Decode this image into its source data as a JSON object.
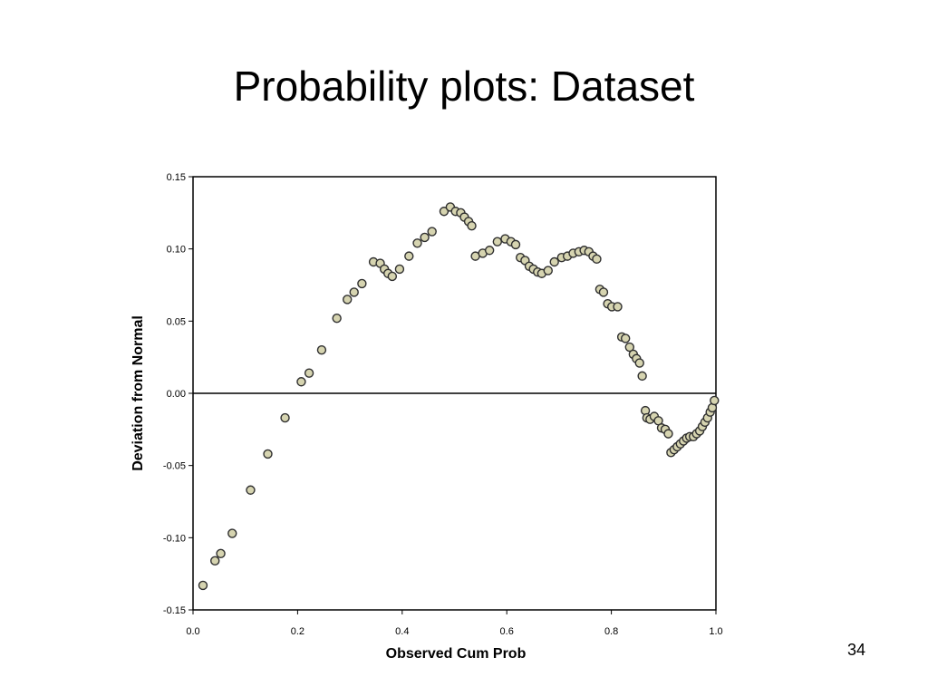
{
  "slide": {
    "title": "Probability plots: Dataset",
    "page_number": "34"
  },
  "colors": {
    "point_fill": "#d6d4b0",
    "point_stroke": "#2f2f2f",
    "axis": "#000000",
    "reference_line": "#000000"
  },
  "chart_data": {
    "type": "scatter",
    "title": "",
    "xlabel": "Observed Cum Prob",
    "ylabel": "Deviation from Normal",
    "xlim": [
      0.0,
      1.0
    ],
    "ylim": [
      -0.15,
      0.15
    ],
    "grid": false,
    "reference_line_y": 0.0,
    "x_ticks": [
      0.0,
      0.2,
      0.4,
      0.6,
      0.8,
      1.0
    ],
    "x_tick_labels": [
      "0.0",
      "0.2",
      "0.4",
      "0.6",
      "0.8",
      "1.0"
    ],
    "y_ticks": [
      0.15,
      0.1,
      0.05,
      0.0,
      -0.05,
      -0.1,
      -0.15
    ],
    "y_tick_labels": [
      "0.15",
      "0.10",
      "0.05",
      "0.00",
      "-0.05",
      "-0.10",
      "-0.15"
    ],
    "points": [
      [
        0.019,
        -0.133
      ],
      [
        0.042,
        -0.116
      ],
      [
        0.053,
        -0.111
      ],
      [
        0.075,
        -0.097
      ],
      [
        0.11,
        -0.067
      ],
      [
        0.143,
        -0.042
      ],
      [
        0.176,
        -0.017
      ],
      [
        0.207,
        0.008
      ],
      [
        0.222,
        0.014
      ],
      [
        0.246,
        0.03
      ],
      [
        0.275,
        0.052
      ],
      [
        0.295,
        0.065
      ],
      [
        0.308,
        0.07
      ],
      [
        0.323,
        0.076
      ],
      [
        0.345,
        0.091
      ],
      [
        0.358,
        0.09
      ],
      [
        0.366,
        0.086
      ],
      [
        0.373,
        0.083
      ],
      [
        0.381,
        0.081
      ],
      [
        0.395,
        0.086
      ],
      [
        0.413,
        0.095
      ],
      [
        0.429,
        0.104
      ],
      [
        0.443,
        0.108
      ],
      [
        0.457,
        0.112
      ],
      [
        0.48,
        0.126
      ],
      [
        0.492,
        0.129
      ],
      [
        0.502,
        0.126
      ],
      [
        0.512,
        0.125
      ],
      [
        0.519,
        0.122
      ],
      [
        0.527,
        0.119
      ],
      [
        0.533,
        0.116
      ],
      [
        0.54,
        0.095
      ],
      [
        0.554,
        0.097
      ],
      [
        0.567,
        0.099
      ],
      [
        0.582,
        0.105
      ],
      [
        0.597,
        0.107
      ],
      [
        0.608,
        0.105
      ],
      [
        0.617,
        0.103
      ],
      [
        0.626,
        0.094
      ],
      [
        0.635,
        0.092
      ],
      [
        0.643,
        0.088
      ],
      [
        0.651,
        0.086
      ],
      [
        0.659,
        0.084
      ],
      [
        0.667,
        0.083
      ],
      [
        0.679,
        0.085
      ],
      [
        0.691,
        0.091
      ],
      [
        0.705,
        0.094
      ],
      [
        0.716,
        0.095
      ],
      [
        0.727,
        0.097
      ],
      [
        0.738,
        0.098
      ],
      [
        0.748,
        0.099
      ],
      [
        0.757,
        0.098
      ],
      [
        0.765,
        0.095
      ],
      [
        0.772,
        0.093
      ],
      [
        0.778,
        0.072
      ],
      [
        0.785,
        0.07
      ],
      [
        0.793,
        0.062
      ],
      [
        0.801,
        0.06
      ],
      [
        0.812,
        0.06
      ],
      [
        0.82,
        0.039
      ],
      [
        0.827,
        0.038
      ],
      [
        0.835,
        0.032
      ],
      [
        0.842,
        0.027
      ],
      [
        0.848,
        0.024
      ],
      [
        0.854,
        0.021
      ],
      [
        0.859,
        0.012
      ],
      [
        0.865,
        -0.012
      ],
      [
        0.868,
        -0.017
      ],
      [
        0.874,
        -0.018
      ],
      [
        0.882,
        -0.016
      ],
      [
        0.89,
        -0.019
      ],
      [
        0.896,
        -0.024
      ],
      [
        0.903,
        -0.025
      ],
      [
        0.909,
        -0.028
      ],
      [
        0.914,
        -0.041
      ],
      [
        0.92,
        -0.039
      ],
      [
        0.926,
        -0.037
      ],
      [
        0.932,
        -0.035
      ],
      [
        0.938,
        -0.033
      ],
      [
        0.944,
        -0.031
      ],
      [
        0.95,
        -0.03
      ],
      [
        0.957,
        -0.03
      ],
      [
        0.963,
        -0.028
      ],
      [
        0.969,
        -0.026
      ],
      [
        0.974,
        -0.023
      ],
      [
        0.979,
        -0.02
      ],
      [
        0.984,
        -0.017
      ],
      [
        0.989,
        -0.013
      ],
      [
        0.993,
        -0.01
      ],
      [
        0.997,
        -0.005
      ]
    ]
  }
}
